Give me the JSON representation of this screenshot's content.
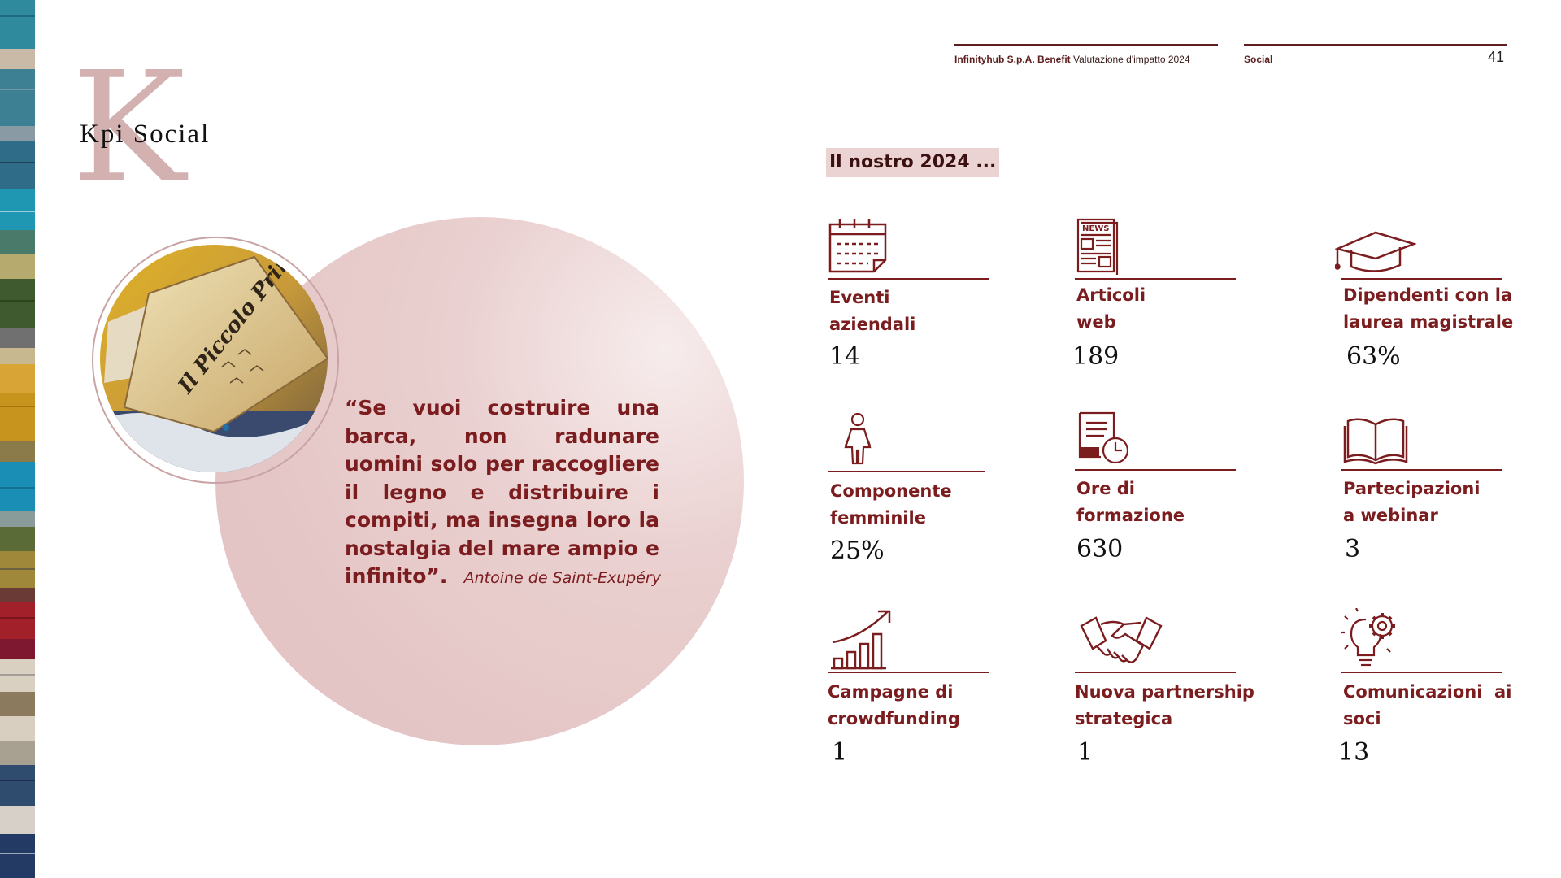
{
  "header": {
    "company": "Infinityhub S.p.A. Benefit",
    "report": "Valutazione d'impatto 2024",
    "section": "Social",
    "page_number": "41"
  },
  "title": {
    "initial": "K",
    "text": "Kpi Social"
  },
  "quote": {
    "text": "“Se vuoi costruire una barca, non radunare uomini solo per raccogliere il legno e distribuire i compiti, ma insegna loro la nostalgia del mare ampio e infinito”.",
    "author": "Antoine de Saint-Exupéry",
    "photo_caption": "Il Piccolo Principe"
  },
  "kpis_heading": "Il nostro 2024 ...",
  "kpis": [
    {
      "label": "Eventi\naziendali",
      "value": "14",
      "icon": "calendar-icon"
    },
    {
      "label": "Articoli\nweb",
      "value": "189",
      "icon": "news-icon"
    },
    {
      "label": "Dipendenti con la\nlaurea magistrale",
      "value": "63%",
      "icon": "graduation-cap-icon"
    },
    {
      "label": "Componente\nfemminile",
      "value": "25%",
      "icon": "woman-icon"
    },
    {
      "label": "Ore di\nformazione",
      "value": "630",
      "icon": "document-clock-icon"
    },
    {
      "label": "Partecipazioni\na webinar",
      "value": "3",
      "icon": "open-book-icon"
    },
    {
      "label": "Campagne di\ncrowdfunding",
      "value": "1",
      "icon": "growth-chart-icon"
    },
    {
      "label": "Nuova partnership\nstrategica",
      "value": "1",
      "icon": "handshake-icon"
    },
    {
      "label": "Comunicazioni  ai\nsoci",
      "value": "13",
      "icon": "lightbulb-gear-icon"
    }
  ],
  "colors": {
    "accent": "#7b1c1f",
    "pink": "#e5c6c6",
    "letter": "#d3b1b1"
  }
}
